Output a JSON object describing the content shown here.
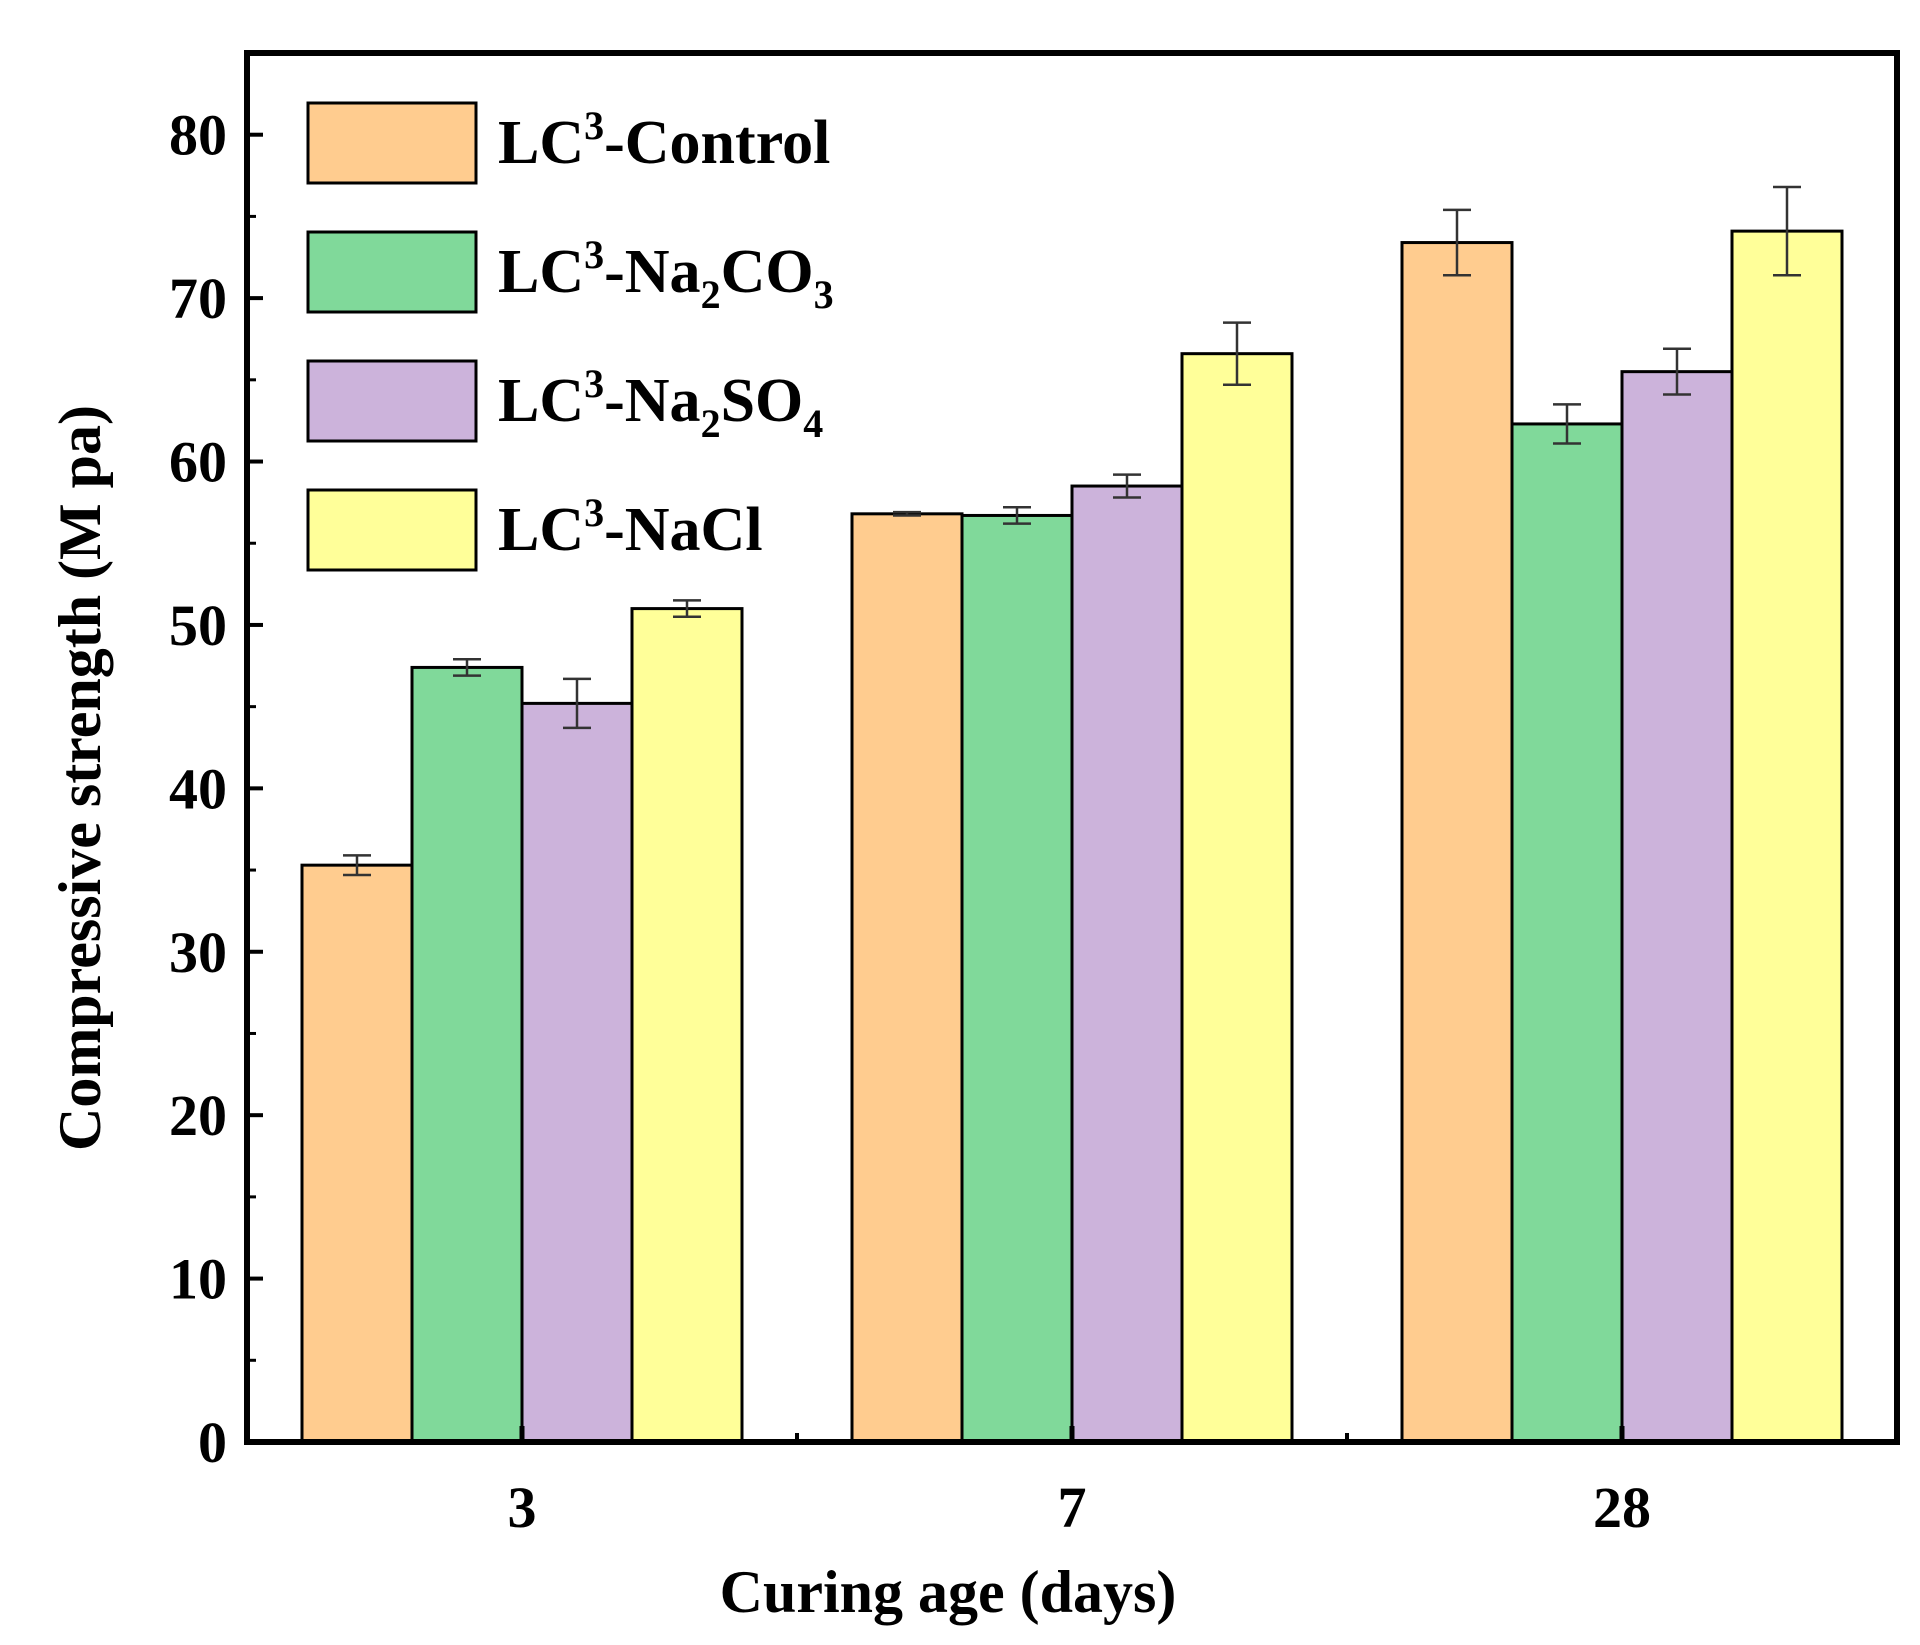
{
  "chart_data": {
    "type": "bar",
    "title": "",
    "xlabel": "Curing age (days)",
    "ylabel": "Compressive strength  (M pa)",
    "categories": [
      "3",
      "7",
      "28"
    ],
    "ylim": [
      0,
      85
    ],
    "yticks": [
      0,
      10,
      20,
      30,
      40,
      50,
      60,
      70,
      80
    ],
    "grid": false,
    "legend_position": "top-left",
    "series": [
      {
        "name": "LC3-Control",
        "legend": {
          "base": "LC",
          "sup": "3",
          "rest": "-Control"
        },
        "color": "#FFCC8F",
        "values": [
          35.3,
          56.8,
          73.4
        ],
        "errors": [
          0.6,
          0.1,
          2.0
        ]
      },
      {
        "name": "LC3-Na2CO3",
        "legend": {
          "base": "LC",
          "sup": "3",
          "rest": "-Na",
          "sub1": "2",
          "rest2": "CO",
          "sub2": "3"
        },
        "color": "#80D99A",
        "values": [
          47.4,
          56.7,
          62.3
        ],
        "errors": [
          0.5,
          0.5,
          1.2
        ]
      },
      {
        "name": "LC3-Na2SO4",
        "legend": {
          "base": "LC",
          "sup": "3",
          "rest": "-Na",
          "sub1": "2",
          "rest2": "SO",
          "sub2": "4"
        },
        "color": "#CCB3DB",
        "values": [
          45.2,
          58.5,
          65.5
        ],
        "errors": [
          1.5,
          0.7,
          1.4
        ]
      },
      {
        "name": "LC3-NaCl",
        "legend": {
          "base": "LC",
          "sup": "3",
          "rest": "-NaCl"
        },
        "color": "#FFFF99",
        "values": [
          51.0,
          66.6,
          74.1
        ],
        "errors": [
          0.5,
          1.9,
          2.7
        ]
      }
    ]
  }
}
